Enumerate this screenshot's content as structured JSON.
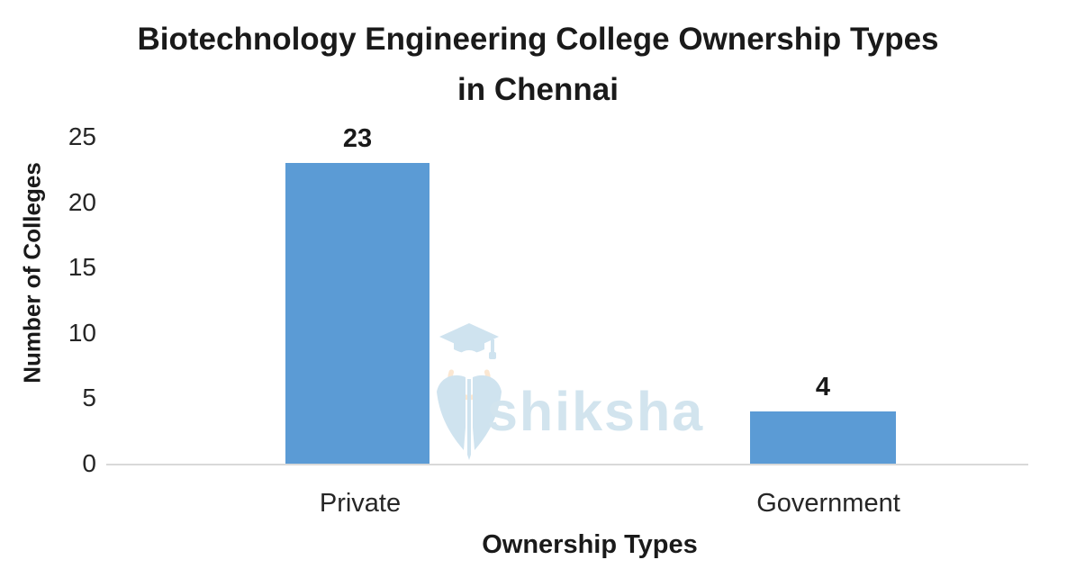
{
  "watermark": {
    "wordmark": "shiksha"
  },
  "colors": {
    "bar": "#5B9BD5",
    "axis_line": "#D9D9D9",
    "text": "#1A1A1A",
    "watermark_blue": "#CFE3EF",
    "watermark_peach": "#FBE7D2"
  },
  "chart_data": {
    "type": "bar",
    "title": "Biotechnology Engineering College Ownership Types in Chennai",
    "title_lines": [
      "Biotechnology Engineering College Ownership Types",
      "in Chennai"
    ],
    "xlabel": "Ownership Types",
    "ylabel": "Number of Colleges",
    "categories": [
      "Private",
      "Government"
    ],
    "values": [
      23,
      4
    ],
    "yticks": [
      25,
      20,
      15,
      10,
      5,
      0
    ],
    "ylim": [
      0,
      25
    ],
    "grid": false,
    "legend_position": "none",
    "bar_color": "#5B9BD5"
  }
}
